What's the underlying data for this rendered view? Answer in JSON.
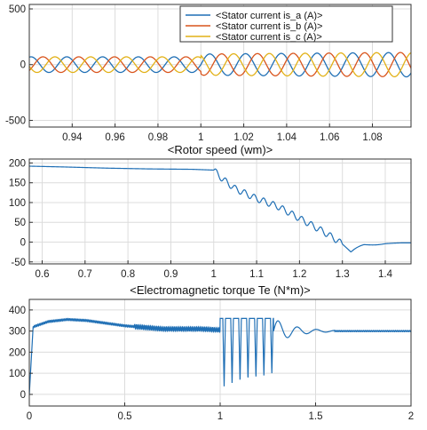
{
  "chart_data": [
    {
      "type": "line",
      "title": "",
      "xlim": [
        0.92,
        1.098
      ],
      "ylim": [
        -560,
        540
      ],
      "xticks": [
        "0.94",
        "0.96",
        "0.98",
        "1",
        "1.02",
        "1.04",
        "1.06",
        "1.08"
      ],
      "yticks": [
        "500",
        "0",
        "-500"
      ],
      "grid": true,
      "legend": "top-right",
      "amplitude_before_1s": 70,
      "amplitude_after_1s": 95,
      "frequency_hz": 60,
      "series": [
        {
          "name": "<Stator current is_a (A)>",
          "color": "#1f6fb5",
          "phase_deg": 0
        },
        {
          "name": "<Stator current is_b (A)>",
          "color": "#d9541c",
          "phase_deg": -120
        },
        {
          "name": "<Stator current is_c (A)>",
          "color": "#e2b117",
          "phase_deg": 120
        }
      ]
    },
    {
      "type": "line",
      "title": "<Rotor speed (wm)>",
      "xlim": [
        0.57,
        1.46
      ],
      "ylim": [
        -55,
        210
      ],
      "xticks": [
        "0.6",
        "0.7",
        "0.8",
        "0.9",
        "1",
        "1.1",
        "1.2",
        "1.3",
        "1.4"
      ],
      "yticks": [
        "200",
        "150",
        "100",
        "50",
        "0",
        "-50"
      ],
      "grid": true,
      "series": [
        {
          "color": "#1f6fb5",
          "x": [
            0.57,
            0.65,
            0.75,
            0.85,
            0.95,
            1.0,
            1.02,
            1.05,
            1.1,
            1.15,
            1.2,
            1.25,
            1.28,
            1.3,
            1.32,
            1.35,
            1.4,
            1.46
          ],
          "y": [
            192,
            190,
            187,
            185,
            184,
            182,
            160,
            135,
            110,
            90,
            60,
            30,
            10,
            -5,
            -25,
            -10,
            -3,
            -2
          ]
        }
      ]
    },
    {
      "type": "line",
      "title": "<Electromagnetic torque Te (N*m)>",
      "xlim": [
        0,
        2
      ],
      "ylim": [
        -55,
        450
      ],
      "xticks": [
        "0",
        "0.5",
        "1",
        "1.5",
        "2"
      ],
      "yticks": [
        "400",
        "300",
        "200",
        "100",
        "0"
      ],
      "grid": true,
      "series": [
        {
          "color": "#1f6fb5",
          "x": [
            0,
            0.02,
            0.1,
            0.2,
            0.3,
            0.5,
            0.7,
            0.9,
            1.0,
            1.6,
            2.0
          ],
          "y": [
            0,
            320,
            345,
            355,
            350,
            325,
            310,
            310,
            305,
            300,
            300
          ]
        }
      ]
    }
  ]
}
